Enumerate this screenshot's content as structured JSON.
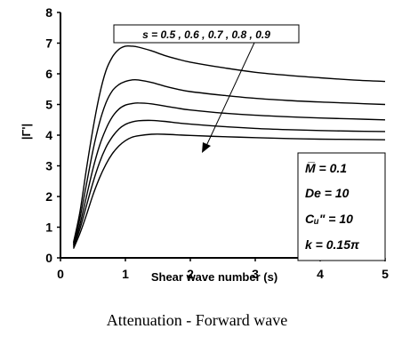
{
  "caption": "Attenuation - Forward wave",
  "chart_data": {
    "type": "line",
    "xlabel": "Shear wave number (s)",
    "ylabel": "|Γ'|",
    "xlim": [
      0,
      5
    ],
    "ylim": [
      0,
      8
    ],
    "x_ticks": [
      "0",
      "1",
      "2",
      "3",
      "4",
      "5"
    ],
    "y_ticks": [
      "0",
      "1",
      "2",
      "3",
      "4",
      "5",
      "6",
      "7",
      "8"
    ],
    "grid": false,
    "legend": "none",
    "series": [
      {
        "x": [
          0.2,
          0.3,
          0.4,
          0.5,
          0.6,
          0.7,
          0.8,
          0.9,
          1.0,
          1.1,
          1.2,
          1.4,
          1.6,
          1.8,
          2.0,
          2.5,
          3.0,
          3.5,
          4.0,
          4.5,
          5.0
        ],
        "y": [
          0.5,
          1.5,
          2.9,
          4.2,
          5.3,
          6.1,
          6.55,
          6.8,
          6.9,
          6.9,
          6.87,
          6.75,
          6.6,
          6.48,
          6.38,
          6.2,
          6.05,
          5.95,
          5.87,
          5.8,
          5.75
        ]
      },
      {
        "x": [
          0.2,
          0.3,
          0.4,
          0.5,
          0.6,
          0.7,
          0.8,
          0.9,
          1.0,
          1.1,
          1.2,
          1.4,
          1.6,
          1.8,
          2.0,
          2.5,
          3.0,
          3.5,
          4.0,
          4.5,
          5.0
        ],
        "y": [
          0.45,
          1.3,
          2.4,
          3.5,
          4.4,
          5.05,
          5.45,
          5.65,
          5.75,
          5.8,
          5.8,
          5.72,
          5.6,
          5.5,
          5.42,
          5.3,
          5.2,
          5.13,
          5.08,
          5.04,
          5.0
        ]
      },
      {
        "x": [
          0.2,
          0.3,
          0.4,
          0.5,
          0.6,
          0.7,
          0.8,
          0.9,
          1.0,
          1.1,
          1.2,
          1.4,
          1.6,
          1.8,
          2.0,
          2.5,
          3.0,
          3.5,
          4.0,
          4.5,
          5.0
        ],
        "y": [
          0.4,
          1.1,
          2.0,
          2.9,
          3.65,
          4.2,
          4.6,
          4.85,
          4.98,
          5.03,
          5.05,
          5.02,
          4.95,
          4.88,
          4.82,
          4.72,
          4.65,
          4.6,
          4.56,
          4.53,
          4.5
        ]
      },
      {
        "x": [
          0.2,
          0.3,
          0.4,
          0.5,
          0.6,
          0.7,
          0.8,
          0.9,
          1.0,
          1.1,
          1.2,
          1.4,
          1.6,
          1.8,
          2.0,
          2.5,
          3.0,
          3.5,
          4.0,
          4.5,
          5.0
        ],
        "y": [
          0.35,
          0.95,
          1.7,
          2.45,
          3.1,
          3.6,
          3.95,
          4.2,
          4.35,
          4.43,
          4.47,
          4.48,
          4.45,
          4.4,
          4.36,
          4.28,
          4.22,
          4.18,
          4.15,
          4.13,
          4.12
        ]
      },
      {
        "x": [
          0.2,
          0.3,
          0.4,
          0.5,
          0.6,
          0.7,
          0.8,
          0.9,
          1.0,
          1.1,
          1.2,
          1.4,
          1.6,
          1.8,
          2.0,
          2.5,
          3.0,
          3.5,
          4.0,
          4.5,
          5.0
        ],
        "y": [
          0.3,
          0.8,
          1.4,
          2.05,
          2.6,
          3.05,
          3.4,
          3.65,
          3.82,
          3.93,
          3.98,
          4.03,
          4.03,
          4.01,
          3.99,
          3.95,
          3.92,
          3.89,
          3.87,
          3.86,
          3.85
        ]
      }
    ],
    "annotations": {
      "s_label": "s = 0.5 , 0.6 , 0.7 , 0.8 , 0.9",
      "params": [
        "M̅ = 0.1",
        "De = 10",
        "Cᵤ\" = 10",
        "k = 0.15π"
      ]
    }
  }
}
